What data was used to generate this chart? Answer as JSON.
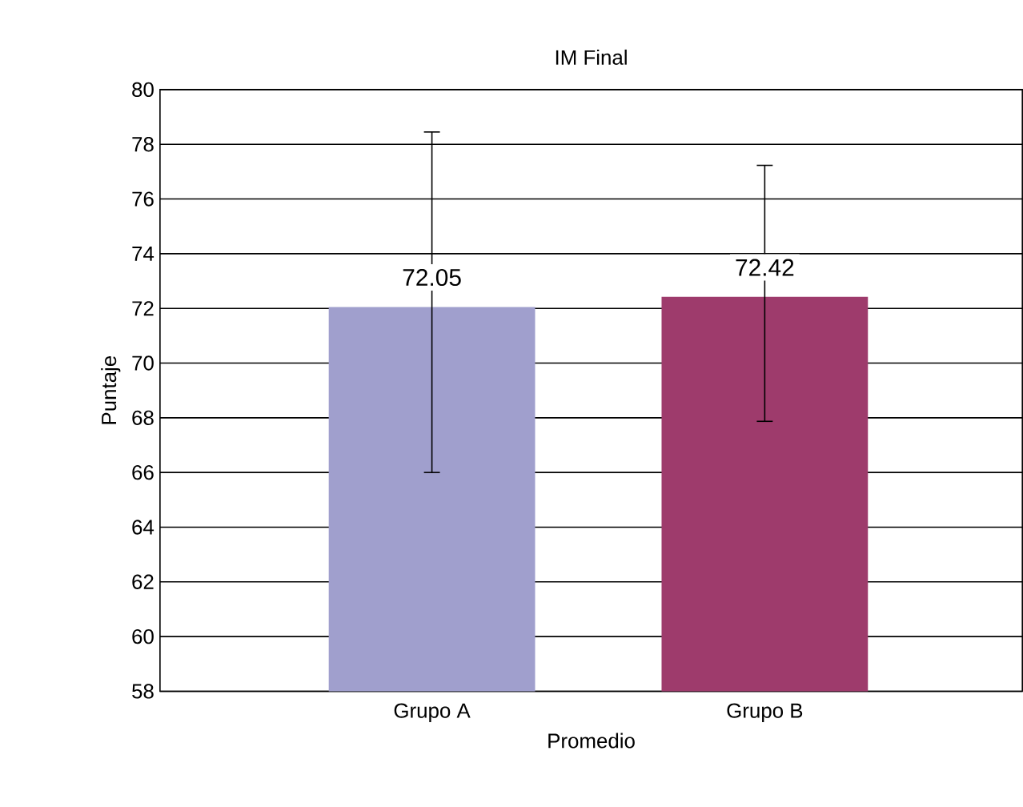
{
  "chart_data": {
    "type": "bar",
    "title": "IM Final",
    "xlabel": "Promedio",
    "ylabel": "Puntaje",
    "categories": [
      "Grupo A",
      "Grupo B"
    ],
    "values": [
      72.05,
      72.42
    ],
    "colors": [
      "#a09fcd",
      "#9e3b6c"
    ],
    "errors": [
      [
        66.0,
        78.45
      ],
      [
        67.87,
        77.23
      ]
    ],
    "ylim": [
      58,
      80
    ],
    "yticks": [
      58,
      60,
      62,
      64,
      66,
      68,
      70,
      72,
      74,
      76,
      78,
      80
    ],
    "grid": "y",
    "data_labels": true
  }
}
